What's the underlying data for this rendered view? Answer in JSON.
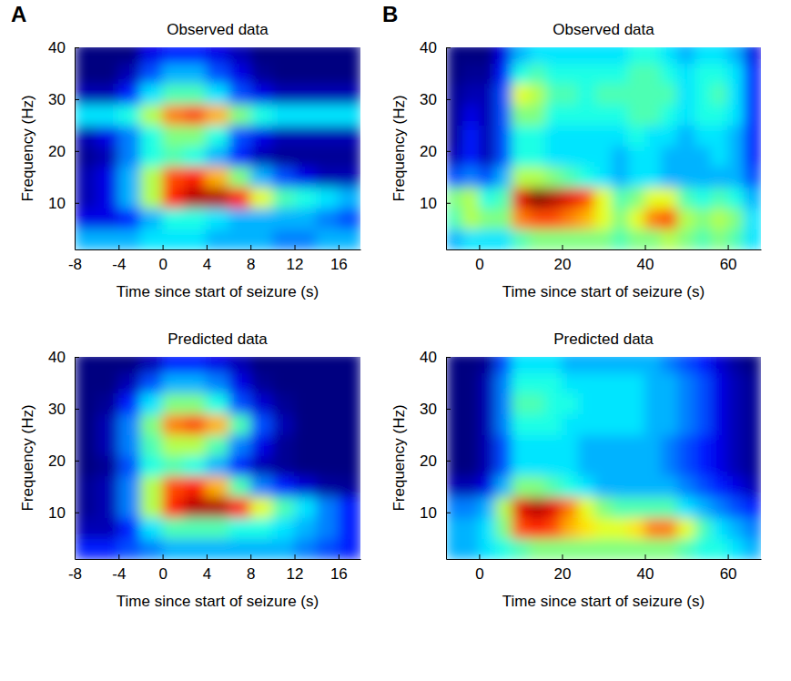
{
  "chart_data": [
    {
      "type": "heatmap",
      "panel_label": "A",
      "title": "Observed data",
      "x_label": "Time since start of seizure (s)",
      "y_label": "Frequency (Hz)",
      "color": "jet",
      "xlim": [
        -8,
        18
      ],
      "xticks": [
        -8,
        -4,
        0,
        4,
        8,
        12,
        16
      ],
      "ylim": [
        1,
        40
      ],
      "yticks": [
        10,
        20,
        30,
        40
      ],
      "zlim": [
        0,
        1
      ],
      "x": [
        -7,
        -5,
        -3,
        -1,
        1,
        3,
        5,
        7,
        9,
        11,
        13,
        15,
        17
      ],
      "y": [
        3,
        7,
        11,
        15,
        19,
        23,
        27,
        31,
        35,
        39
      ],
      "z": [
        [
          0.3,
          0.3,
          0.3,
          0.35,
          0.35,
          0.35,
          0.3,
          0.3,
          0.3,
          0.25,
          0.25,
          0.3,
          0.3
        ],
        [
          0.1,
          0.1,
          0.15,
          0.3,
          0.4,
          0.4,
          0.35,
          0.3,
          0.3,
          0.3,
          0.3,
          0.25,
          0.2
        ],
        [
          0.05,
          0.1,
          0.3,
          0.55,
          0.85,
          0.95,
          0.95,
          0.85,
          0.6,
          0.45,
          0.4,
          0.35,
          0.3
        ],
        [
          0.05,
          0.1,
          0.3,
          0.55,
          0.8,
          0.85,
          0.7,
          0.5,
          0.3,
          0.2,
          0.1,
          0.05,
          0.05
        ],
        [
          0.02,
          0.05,
          0.25,
          0.4,
          0.45,
          0.4,
          0.3,
          0.15,
          0.05,
          0.02,
          0.02,
          0.02,
          0.02
        ],
        [
          0.05,
          0.1,
          0.25,
          0.4,
          0.5,
          0.5,
          0.4,
          0.2,
          0.1,
          0.05,
          0.05,
          0.05,
          0.05
        ],
        [
          0.35,
          0.35,
          0.4,
          0.55,
          0.75,
          0.8,
          0.7,
          0.5,
          0.4,
          0.35,
          0.35,
          0.35,
          0.35
        ],
        [
          0.05,
          0.05,
          0.15,
          0.35,
          0.45,
          0.45,
          0.35,
          0.2,
          0.1,
          0.05,
          0.05,
          0.05,
          0.05
        ],
        [
          0,
          0,
          0.05,
          0.2,
          0.3,
          0.3,
          0.2,
          0.1,
          0.02,
          0,
          0,
          0,
          0
        ],
        [
          0,
          0,
          0,
          0.1,
          0.15,
          0.15,
          0.1,
          0.05,
          0,
          0,
          0,
          0,
          0
        ]
      ]
    },
    {
      "type": "heatmap",
      "panel_label": "B",
      "title": "Observed data",
      "x_label": "Time since start of seizure (s)",
      "y_label": "Frequency (Hz)",
      "color": "jet",
      "xlim": [
        -8,
        68
      ],
      "xticks": [
        0,
        20,
        40,
        60
      ],
      "ylim": [
        1,
        40
      ],
      "yticks": [
        10,
        20,
        30,
        40
      ],
      "zlim": [
        0,
        1
      ],
      "x": [
        -6,
        -2,
        2,
        6,
        10,
        14,
        18,
        22,
        26,
        30,
        34,
        38,
        42,
        46,
        50,
        54,
        58,
        62,
        66
      ],
      "y": [
        3,
        7,
        11,
        15,
        19,
        23,
        27,
        31,
        35,
        39
      ],
      "z": [
        [
          0.3,
          0.35,
          0.35,
          0.35,
          0.45,
          0.5,
          0.5,
          0.5,
          0.5,
          0.5,
          0.45,
          0.5,
          0.5,
          0.55,
          0.5,
          0.45,
          0.5,
          0.45,
          0.35
        ],
        [
          0.45,
          0.55,
          0.5,
          0.5,
          0.75,
          0.8,
          0.8,
          0.75,
          0.7,
          0.6,
          0.5,
          0.6,
          0.75,
          0.8,
          0.55,
          0.5,
          0.55,
          0.5,
          0.35
        ],
        [
          0.5,
          0.55,
          0.4,
          0.45,
          0.9,
          1.0,
          0.95,
          0.9,
          0.8,
          0.6,
          0.45,
          0.5,
          0.6,
          0.6,
          0.45,
          0.4,
          0.45,
          0.4,
          0.3
        ],
        [
          0.2,
          0.25,
          0.2,
          0.3,
          0.55,
          0.55,
          0.5,
          0.45,
          0.4,
          0.35,
          0.3,
          0.35,
          0.35,
          0.3,
          0.3,
          0.3,
          0.3,
          0.3,
          0.2
        ],
        [
          0.05,
          0.15,
          0.05,
          0.2,
          0.4,
          0.4,
          0.35,
          0.35,
          0.35,
          0.35,
          0.3,
          0.35,
          0.35,
          0.3,
          0.3,
          0.3,
          0.35,
          0.3,
          0.15
        ],
        [
          0.02,
          0.15,
          0.05,
          0.2,
          0.4,
          0.4,
          0.35,
          0.35,
          0.35,
          0.35,
          0.35,
          0.4,
          0.35,
          0.35,
          0.3,
          0.35,
          0.35,
          0.3,
          0.15
        ],
        [
          0.02,
          0.1,
          0.05,
          0.2,
          0.5,
          0.5,
          0.4,
          0.4,
          0.4,
          0.4,
          0.4,
          0.45,
          0.45,
          0.4,
          0.35,
          0.4,
          0.4,
          0.35,
          0.15
        ],
        [
          0.02,
          0.05,
          0.05,
          0.2,
          0.6,
          0.55,
          0.45,
          0.45,
          0.4,
          0.45,
          0.45,
          0.45,
          0.45,
          0.45,
          0.35,
          0.4,
          0.45,
          0.35,
          0.15
        ],
        [
          0,
          0.02,
          0.02,
          0.15,
          0.4,
          0.45,
          0.4,
          0.4,
          0.4,
          0.4,
          0.4,
          0.45,
          0.45,
          0.4,
          0.35,
          0.4,
          0.4,
          0.35,
          0.15
        ],
        [
          0,
          0,
          0,
          0.1,
          0.3,
          0.35,
          0.35,
          0.35,
          0.35,
          0.35,
          0.35,
          0.4,
          0.4,
          0.35,
          0.3,
          0.35,
          0.35,
          0.3,
          0.1
        ]
      ]
    },
    {
      "type": "heatmap",
      "title": "Predicted data",
      "x_label": "Time since start of seizure (s)",
      "y_label": "Frequency (Hz)",
      "color": "jet",
      "xlim": [
        -8,
        18
      ],
      "xticks": [
        -8,
        -4,
        0,
        4,
        8,
        12,
        16
      ],
      "ylim": [
        1,
        40
      ],
      "yticks": [
        10,
        20,
        30,
        40
      ],
      "zlim": [
        0,
        1
      ],
      "x": [
        -7,
        -5,
        -3,
        -1,
        1,
        3,
        5,
        7,
        9,
        11,
        13,
        15,
        17
      ],
      "y": [
        3,
        7,
        11,
        15,
        19,
        23,
        27,
        31,
        35,
        39
      ],
      "z": [
        [
          0.15,
          0.15,
          0.2,
          0.25,
          0.3,
          0.3,
          0.3,
          0.3,
          0.3,
          0.3,
          0.25,
          0.2,
          0.15
        ],
        [
          0.05,
          0.05,
          0.15,
          0.35,
          0.45,
          0.45,
          0.45,
          0.4,
          0.4,
          0.35,
          0.3,
          0.25,
          0.15
        ],
        [
          0.02,
          0.05,
          0.25,
          0.55,
          0.85,
          0.95,
          0.95,
          0.85,
          0.6,
          0.45,
          0.35,
          0.25,
          0.15
        ],
        [
          0.02,
          0.05,
          0.25,
          0.55,
          0.8,
          0.85,
          0.7,
          0.45,
          0.25,
          0.15,
          0.08,
          0.03,
          0.02
        ],
        [
          0,
          0.02,
          0.2,
          0.4,
          0.45,
          0.4,
          0.3,
          0.15,
          0.05,
          0.02,
          0,
          0,
          0
        ],
        [
          0,
          0.05,
          0.25,
          0.45,
          0.55,
          0.55,
          0.45,
          0.25,
          0.1,
          0.02,
          0,
          0,
          0
        ],
        [
          0,
          0.05,
          0.25,
          0.5,
          0.75,
          0.8,
          0.7,
          0.45,
          0.2,
          0.05,
          0,
          0,
          0
        ],
        [
          0,
          0.02,
          0.15,
          0.35,
          0.5,
          0.5,
          0.4,
          0.2,
          0.08,
          0.02,
          0,
          0,
          0
        ],
        [
          0,
          0,
          0.05,
          0.2,
          0.3,
          0.3,
          0.25,
          0.1,
          0.02,
          0,
          0,
          0,
          0
        ],
        [
          0,
          0,
          0,
          0.05,
          0.15,
          0.15,
          0.1,
          0.05,
          0,
          0,
          0,
          0,
          0
        ]
      ]
    },
    {
      "type": "heatmap",
      "title": "Predicted data",
      "x_label": "Time since start of seizure (s)",
      "y_label": "Frequency (Hz)",
      "color": "jet",
      "xlim": [
        -8,
        68
      ],
      "xticks": [
        0,
        20,
        40,
        60
      ],
      "ylim": [
        1,
        40
      ],
      "yticks": [
        10,
        20,
        30,
        40
      ],
      "zlim": [
        0,
        1
      ],
      "x": [
        -6,
        -2,
        2,
        6,
        10,
        14,
        18,
        22,
        26,
        30,
        34,
        38,
        42,
        46,
        50,
        54,
        58,
        62,
        66
      ],
      "y": [
        3,
        7,
        11,
        15,
        19,
        23,
        27,
        31,
        35,
        39
      ],
      "z": [
        [
          0.3,
          0.3,
          0.35,
          0.4,
          0.45,
          0.5,
          0.5,
          0.5,
          0.5,
          0.5,
          0.5,
          0.5,
          0.5,
          0.5,
          0.45,
          0.4,
          0.4,
          0.35,
          0.3
        ],
        [
          0.3,
          0.3,
          0.35,
          0.5,
          0.8,
          0.85,
          0.8,
          0.7,
          0.65,
          0.6,
          0.6,
          0.65,
          0.75,
          0.75,
          0.6,
          0.45,
          0.35,
          0.3,
          0.25
        ],
        [
          0.25,
          0.25,
          0.3,
          0.55,
          0.9,
          0.95,
          0.9,
          0.75,
          0.6,
          0.5,
          0.45,
          0.45,
          0.45,
          0.45,
          0.35,
          0.3,
          0.25,
          0.2,
          0.15
        ],
        [
          0.05,
          0.05,
          0.1,
          0.3,
          0.5,
          0.5,
          0.45,
          0.4,
          0.35,
          0.3,
          0.3,
          0.3,
          0.3,
          0.3,
          0.25,
          0.2,
          0.15,
          0.1,
          0.05
        ],
        [
          0,
          0,
          0.05,
          0.2,
          0.35,
          0.35,
          0.35,
          0.35,
          0.3,
          0.3,
          0.3,
          0.3,
          0.3,
          0.25,
          0.2,
          0.15,
          0.1,
          0.05,
          0.02
        ],
        [
          0,
          0,
          0.05,
          0.2,
          0.35,
          0.35,
          0.35,
          0.35,
          0.3,
          0.3,
          0.3,
          0.3,
          0.3,
          0.25,
          0.2,
          0.15,
          0.1,
          0.05,
          0.02
        ],
        [
          0,
          0,
          0.05,
          0.25,
          0.4,
          0.4,
          0.4,
          0.35,
          0.35,
          0.35,
          0.35,
          0.35,
          0.3,
          0.3,
          0.25,
          0.2,
          0.1,
          0.05,
          0.02
        ],
        [
          0,
          0,
          0.05,
          0.25,
          0.45,
          0.45,
          0.4,
          0.4,
          0.35,
          0.35,
          0.35,
          0.35,
          0.3,
          0.3,
          0.25,
          0.2,
          0.1,
          0.05,
          0.02
        ],
        [
          0,
          0,
          0.05,
          0.25,
          0.4,
          0.4,
          0.4,
          0.35,
          0.35,
          0.35,
          0.35,
          0.35,
          0.3,
          0.3,
          0.25,
          0.2,
          0.1,
          0.05,
          0.02
        ],
        [
          0,
          0,
          0.02,
          0.2,
          0.35,
          0.35,
          0.35,
          0.3,
          0.3,
          0.3,
          0.3,
          0.3,
          0.3,
          0.25,
          0.2,
          0.15,
          0.08,
          0.03,
          0
        ]
      ]
    }
  ]
}
